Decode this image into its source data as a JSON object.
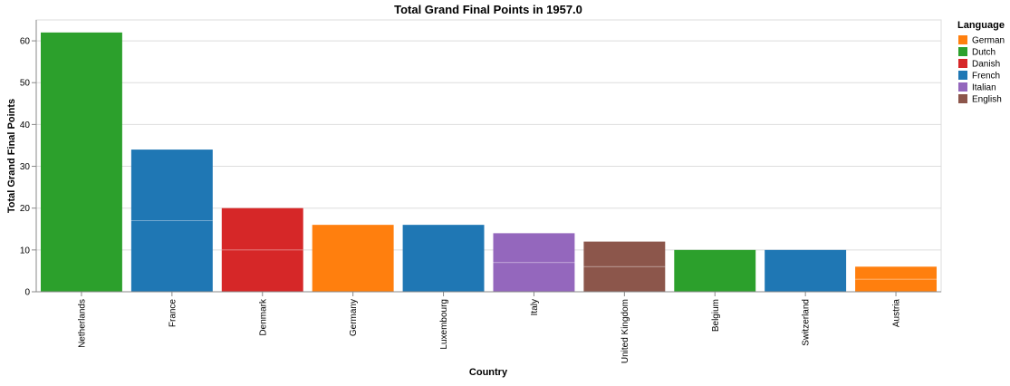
{
  "chart_data": {
    "type": "bar",
    "title": "Total Grand Final Points in 1957.0",
    "xlabel": "Country",
    "ylabel": "Total Grand Final Points",
    "ylim": [
      0,
      65
    ],
    "yticks": [
      0,
      10,
      20,
      30,
      40,
      50,
      60
    ],
    "grid": true,
    "legend": {
      "title": "Language",
      "position": "top-right",
      "entries": [
        {
          "name": "German",
          "color": "#ff7f0e"
        },
        {
          "name": "Dutch",
          "color": "#2ca02c"
        },
        {
          "name": "Danish",
          "color": "#d62728"
        },
        {
          "name": "French",
          "color": "#1f77b4"
        },
        {
          "name": "Italian",
          "color": "#9467bd"
        },
        {
          "name": "English",
          "color": "#8c564b"
        }
      ]
    },
    "categories": [
      "Netherlands",
      "France",
      "Denmark",
      "Germany",
      "Luxembourg",
      "Italy",
      "United Kingdom",
      "Belgium",
      "Switzerland",
      "Austria"
    ],
    "values": [
      62,
      34,
      20,
      16,
      16,
      14,
      12,
      10,
      10,
      6
    ],
    "languages": [
      "Dutch",
      "French",
      "Danish",
      "German",
      "French",
      "Italian",
      "English",
      "Dutch",
      "French",
      "German"
    ],
    "segments": [
      [
        62
      ],
      [
        17,
        17
      ],
      [
        10,
        10
      ],
      [
        16
      ],
      [
        16
      ],
      [
        7,
        7
      ],
      [
        6,
        6
      ],
      [
        10
      ],
      [
        10
      ],
      [
        3,
        3
      ]
    ]
  }
}
